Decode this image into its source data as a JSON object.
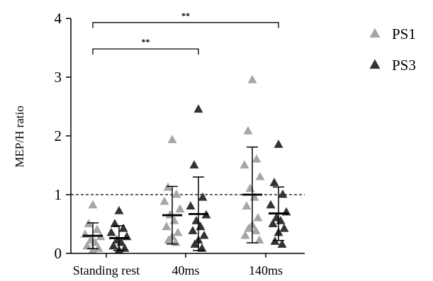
{
  "chart_data": {
    "type": "scatter",
    "title": "",
    "xlabel": "",
    "ylabel": "MEP/H ratio",
    "ylim": [
      0,
      4
    ],
    "yticks": [
      0,
      1,
      2,
      3,
      4
    ],
    "categories": [
      "Standing rest",
      "40ms",
      "140ms"
    ],
    "reference_line": 1,
    "legend_position": "top-right",
    "series": [
      {
        "name": "PS1",
        "color": "#a6a6a6",
        "marker": "triangle",
        "points": [
          [
            0.82,
            0.5,
            0.4,
            0.32,
            0.28,
            0.22,
            0.18,
            0.12,
            0.08,
            0.05
          ],
          [
            1.93,
            1.12,
            1.0,
            0.88,
            0.75,
            0.65,
            0.55,
            0.45,
            0.35,
            0.28,
            0.22,
            0.18
          ],
          [
            2.95,
            2.08,
            1.6,
            1.5,
            1.3,
            1.1,
            0.95,
            0.8,
            0.6,
            0.48,
            0.42,
            0.38,
            0.3,
            0.22
          ]
        ],
        "mean": [
          0.3,
          0.65,
          1.0
        ],
        "sd_low": [
          0.08,
          0.16,
          0.18
        ],
        "sd_high": [
          0.52,
          1.14,
          1.81
        ]
      },
      {
        "name": "PS3",
        "color": "#333333",
        "marker": "triangle",
        "points": [
          [
            0.72,
            0.5,
            0.42,
            0.35,
            0.28,
            0.22,
            0.18,
            0.12,
            0.08,
            0.05
          ],
          [
            2.45,
            1.5,
            0.95,
            0.8,
            0.65,
            0.55,
            0.45,
            0.38,
            0.3,
            0.22,
            0.15,
            0.08
          ],
          [
            1.85,
            1.2,
            1.0,
            0.82,
            0.7,
            0.6,
            0.55,
            0.5,
            0.42,
            0.35,
            0.2,
            0.15
          ]
        ],
        "mean": [
          0.26,
          0.67,
          0.68
        ],
        "sd_low": [
          0.05,
          0.05,
          0.22
        ],
        "sd_high": [
          0.47,
          1.3,
          1.13
        ]
      }
    ],
    "significance": [
      {
        "from": "Standing rest",
        "to": "40ms",
        "label": "**",
        "y": 3.48
      },
      {
        "from": "Standing rest",
        "to": "140ms",
        "label": "**",
        "y": 3.93
      }
    ]
  }
}
